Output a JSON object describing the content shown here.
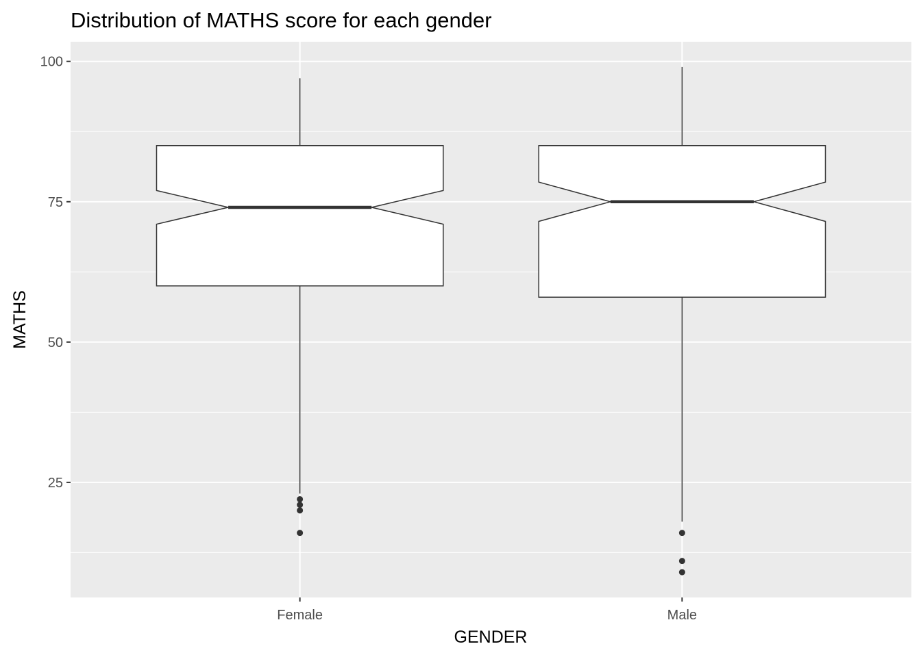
{
  "chart_data": {
    "type": "boxplot",
    "variant": "notched",
    "title": "Distribution of MATHS score for each gender",
    "xlabel": "GENDER",
    "ylabel": "MATHS",
    "ylim": [
      4.5,
      103.5
    ],
    "yticks": [
      25,
      50,
      75,
      100
    ],
    "y_minor_gridlines": [
      12.5,
      37.5,
      62.5,
      87.5
    ],
    "grid": true,
    "legend": "none",
    "colors": {
      "panel_background": "#ebebeb",
      "grid": "#ffffff",
      "box_fill": "#ffffff",
      "box_line": "#333333",
      "outlier": "#333333"
    },
    "categories": [
      "Female",
      "Male"
    ],
    "boxes": [
      {
        "category": "Female",
        "whisker_low": 23,
        "q1": 60,
        "median": 74,
        "q3": 85,
        "whisker_high": 97,
        "notch_low": 71,
        "notch_high": 77,
        "outliers": [
          22,
          21,
          20,
          16
        ]
      },
      {
        "category": "Male",
        "whisker_low": 18,
        "q1": 58,
        "median": 75,
        "q3": 85,
        "whisker_high": 99,
        "notch_low": 71.5,
        "notch_high": 78.5,
        "outliers": [
          16,
          11,
          9
        ]
      }
    ]
  }
}
